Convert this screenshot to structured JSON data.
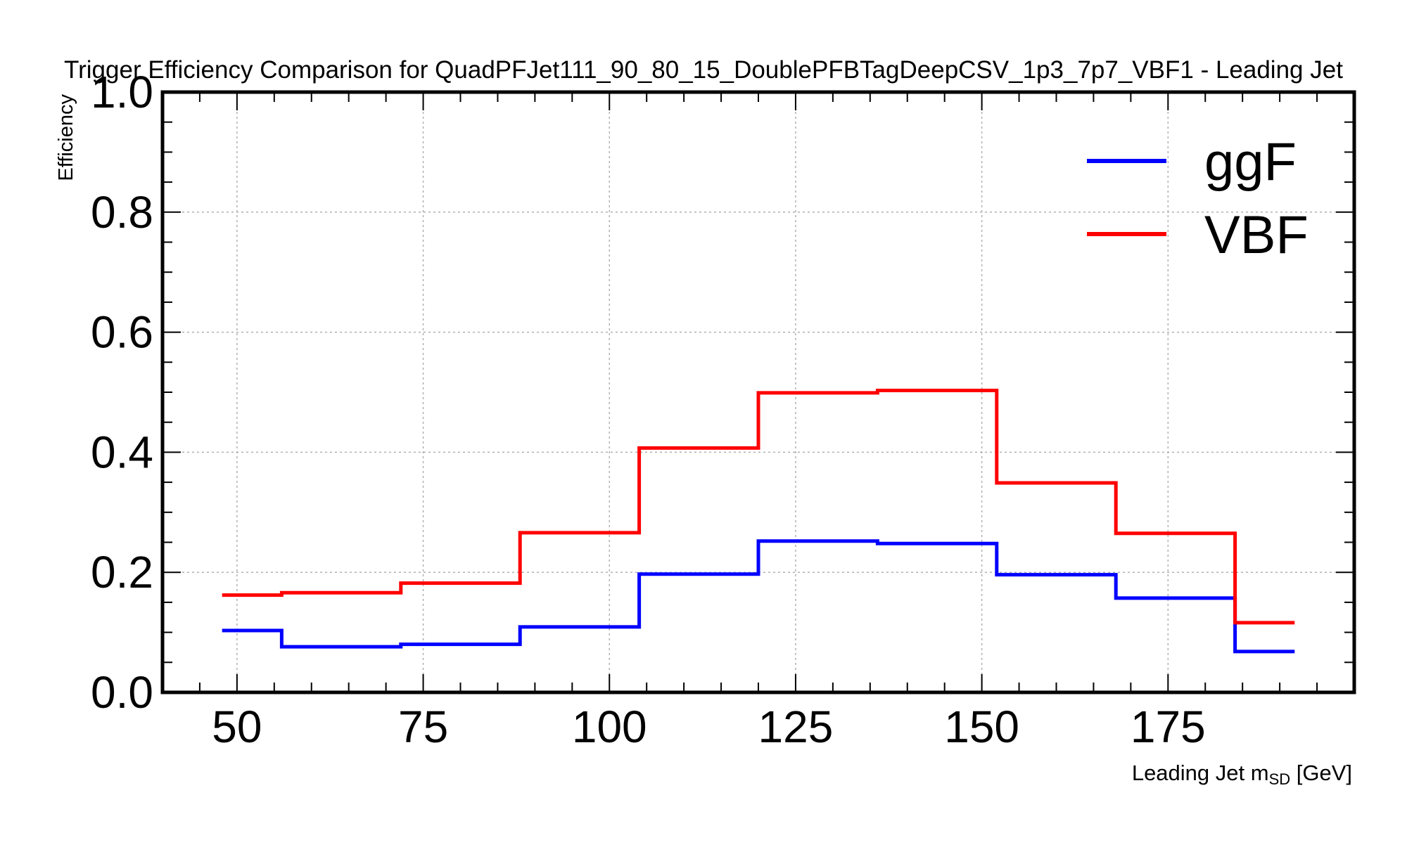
{
  "chart_data": {
    "type": "line",
    "drawstyle": "steps",
    "title": "Trigger Efficiency Comparison for QuadPFJet111_90_80_15_DoublePFBTagDeepCSV_1p3_7p7_VBF1 - Leading Jet",
    "xlabel": "Leading Jet m",
    "xlabel_subscript": "SD",
    "xlabel_suffix": " [GeV]",
    "ylabel": "Efficiency",
    "xlim": [
      40,
      200
    ],
    "ylim": [
      0.0,
      1.0
    ],
    "xticks": [
      50,
      75,
      100,
      125,
      150,
      175
    ],
    "yticks": [
      0.0,
      0.2,
      0.4,
      0.6,
      0.8,
      1.0
    ],
    "xtick_labels": [
      "50",
      "75",
      "100",
      "125",
      "150",
      "175"
    ],
    "ytick_labels": [
      "0.0",
      "0.2",
      "0.4",
      "0.6",
      "0.8",
      "1.0"
    ],
    "grid": true,
    "legend_position": "top-right",
    "bin_edges": [
      48,
      56,
      72,
      88,
      104,
      120,
      136,
      152,
      168,
      184,
      192
    ],
    "series": [
      {
        "name": "ggF",
        "color": "#0000ff",
        "values": [
          0.103,
          0.076,
          0.08,
          0.109,
          0.197,
          0.252,
          0.248,
          0.196,
          0.157,
          0.068
        ]
      },
      {
        "name": "VBF",
        "color": "#ff0000",
        "values": [
          0.162,
          0.166,
          0.182,
          0.266,
          0.407,
          0.499,
          0.503,
          0.349,
          0.265,
          0.116
        ]
      }
    ]
  }
}
